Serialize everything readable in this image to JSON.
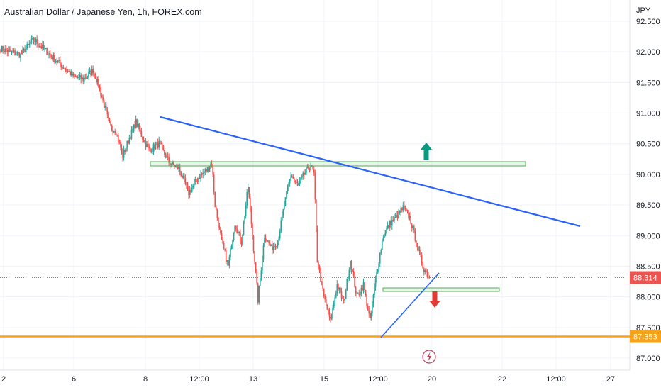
{
  "chart_data": {
    "type": "candlestick",
    "title": "Australian Dollar / Japanese Yen, 1h, FOREX.com",
    "currency": "JPY",
    "ylim": [
      86.85,
      92.6
    ],
    "y_ticks": [
      "92.500",
      "92.000",
      "91.500",
      "91.000",
      "90.500",
      "90.000",
      "89.500",
      "89.000",
      "88.500",
      "88.000",
      "87.500",
      "87.000"
    ],
    "x_ticks": [
      "2",
      "6",
      "8",
      "12:00",
      "13",
      "15",
      "12:00",
      "20",
      "22",
      "12:00",
      "27"
    ],
    "last_price": "88.314",
    "last_price_value": 88.314,
    "support_level": "87.353",
    "support_value": 87.353,
    "colors": {
      "up": "#26a69a",
      "down": "#ef5350",
      "trendline": "#2962ff",
      "support": "#f7a21b",
      "zone": "#4caf50",
      "arrow_up": "#089981",
      "arrow_down": "#e53935"
    },
    "key_points": [
      [
        0,
        92.05
      ],
      [
        3,
        92.0
      ],
      [
        6,
        91.95
      ],
      [
        10,
        92.2
      ],
      [
        14,
        92.0
      ],
      [
        18,
        91.8
      ],
      [
        22,
        91.6
      ],
      [
        25,
        91.55
      ],
      [
        28,
        91.7
      ],
      [
        30,
        91.4
      ],
      [
        33,
        90.8
      ],
      [
        35,
        90.7
      ],
      [
        37,
        90.3
      ],
      [
        39,
        90.6
      ],
      [
        41,
        90.85
      ],
      [
        43,
        90.6
      ],
      [
        45,
        90.4
      ],
      [
        48,
        90.5
      ],
      [
        51,
        90.2
      ],
      [
        54,
        90.1
      ],
      [
        57,
        89.7
      ],
      [
        60,
        89.95
      ],
      [
        63,
        90.1
      ],
      [
        64,
        90.2
      ],
      [
        65,
        89.5
      ],
      [
        67,
        88.9
      ],
      [
        69,
        88.5
      ],
      [
        71,
        89.2
      ],
      [
        73,
        88.9
      ],
      [
        75,
        89.8
      ],
      [
        77,
        88.6
      ],
      [
        78,
        87.95
      ],
      [
        80,
        89.0
      ],
      [
        82,
        88.8
      ],
      [
        84,
        88.9
      ],
      [
        86,
        89.5
      ],
      [
        88,
        90.0
      ],
      [
        90,
        89.8
      ],
      [
        92,
        90.0
      ],
      [
        94,
        90.15
      ],
      [
        95,
        90.0
      ],
      [
        96,
        88.6
      ],
      [
        98,
        88.0
      ],
      [
        100,
        87.6
      ],
      [
        102,
        88.2
      ],
      [
        104,
        87.9
      ],
      [
        106,
        88.6
      ],
      [
        108,
        88.0
      ],
      [
        110,
        88.2
      ],
      [
        112,
        87.6
      ],
      [
        114,
        88.4
      ],
      [
        116,
        89.0
      ],
      [
        118,
        89.2
      ],
      [
        120,
        89.3
      ],
      [
        122,
        89.45
      ],
      [
        124,
        89.3
      ],
      [
        126,
        88.9
      ],
      [
        128,
        88.5
      ],
      [
        130,
        88.314
      ]
    ]
  }
}
